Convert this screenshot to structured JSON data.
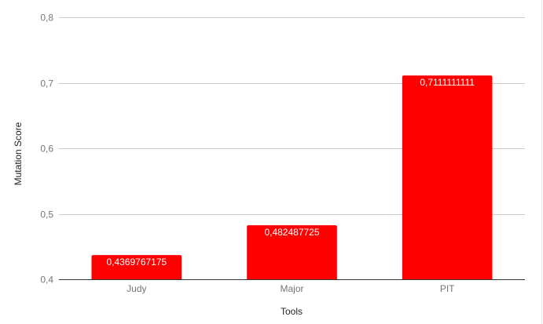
{
  "chart_data": {
    "type": "bar",
    "title": "",
    "xlabel": "Tools",
    "ylabel": "Mutation Score",
    "categories": [
      "Judy",
      "Major",
      "PIT"
    ],
    "values": [
      0.4369767175,
      0.482487725,
      0.7111111111
    ],
    "value_labels": [
      "0,4369767175",
      "0,482487725",
      "0,7111111111"
    ],
    "ylim": [
      0.4,
      0.8
    ],
    "yticks": [
      0.4,
      0.5,
      0.6,
      0.7,
      0.8
    ],
    "ytick_labels": [
      "0,4",
      "0,5",
      "0,6",
      "0,7",
      "0,8"
    ],
    "grid": true,
    "legend": "none",
    "bar_color": "#ff0000",
    "gridline_color": "#cccccc"
  }
}
